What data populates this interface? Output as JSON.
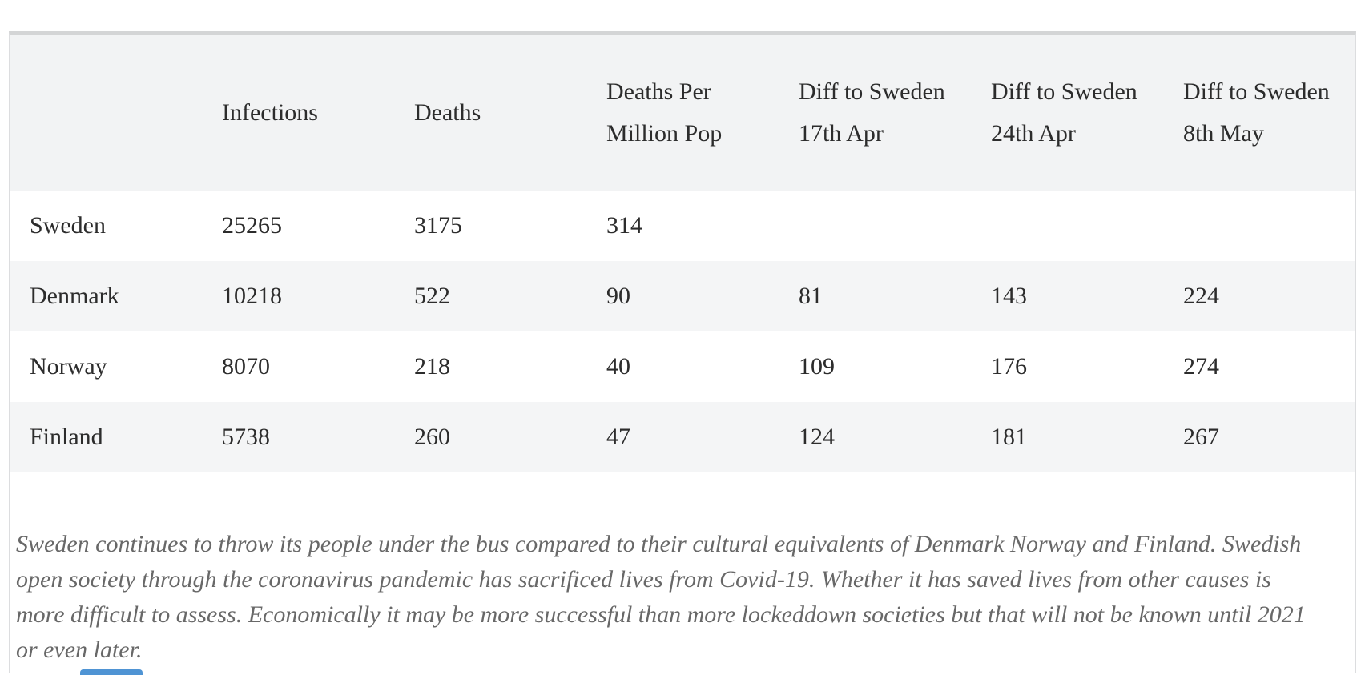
{
  "table": {
    "columns": [
      "",
      "Infections",
      "Deaths",
      "Deaths Per Million Pop",
      "Diff to Sweden 17th Apr",
      "Diff to Sweden 24th Apr",
      "Diff to Sweden 8th May"
    ],
    "rows": [
      {
        "country": "Sweden",
        "values": [
          "25265",
          "3175",
          "314",
          "",
          "",
          ""
        ]
      },
      {
        "country": "Denmark",
        "values": [
          "10218",
          "522",
          "90",
          "81",
          "143",
          "224"
        ]
      },
      {
        "country": "Norway",
        "values": [
          "8070",
          "218",
          "40",
          "109",
          "176",
          "274"
        ]
      },
      {
        "country": "Finland",
        "values": [
          "5738",
          "260",
          "47",
          "124",
          "181",
          "267"
        ]
      }
    ]
  },
  "caption": "Sweden continues to throw its people under the bus compared to their cultural equivalents of Denmark Norway and Finland. Swedish open society through the coronavirus pandemic has sacrificed lives from Covid-19. Whether it has saved lives from other causes is more difficult to assess. Economically it may be more successful than more lockeddown societies but that will not be known until 2021 or even later.",
  "colors": {
    "header_background": "#f2f3f4",
    "stripe_background": "#f4f5f6",
    "container_border": "#d4d5d6",
    "table_text": "#2c2c2c",
    "caption_text": "#686868",
    "partial_button_blue": "#4f94d4"
  }
}
